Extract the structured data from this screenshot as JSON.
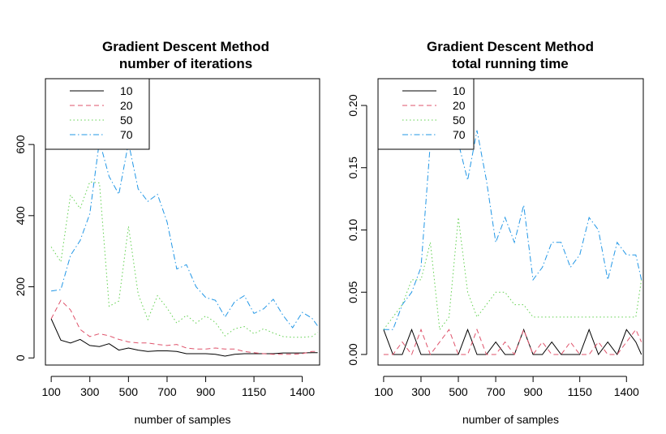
{
  "chart_data": [
    {
      "type": "line",
      "title": [
        "Gradient Descent Method",
        "number of iterations"
      ],
      "xlabel": "number of samples",
      "ylabel": "",
      "xlim": [
        70,
        1490
      ],
      "ylim": [
        -20,
        785
      ],
      "x_ticks": [
        100,
        300,
        500,
        700,
        900,
        1150,
        1400
      ],
      "y_ticks": [
        0,
        200,
        400,
        600
      ],
      "legend_position": "top-left",
      "x": [
        100,
        150,
        200,
        250,
        300,
        350,
        400,
        450,
        500,
        550,
        600,
        650,
        700,
        750,
        800,
        850,
        900,
        950,
        1000,
        1050,
        1100,
        1150,
        1200,
        1250,
        1300,
        1350,
        1400,
        1450,
        1480
      ],
      "series": [
        {
          "name": "10",
          "color": "#000000",
          "dash": "",
          "values": [
            110,
            50,
            42,
            52,
            35,
            32,
            40,
            22,
            28,
            22,
            18,
            20,
            20,
            18,
            12,
            12,
            12,
            10,
            5,
            10,
            12,
            12,
            12,
            12,
            14,
            14,
            14,
            15,
            15
          ]
        },
        {
          "name": "20",
          "color": "#DF536B",
          "dash": "6,4",
          "values": [
            110,
            162,
            135,
            80,
            60,
            68,
            62,
            52,
            45,
            42,
            42,
            38,
            35,
            38,
            28,
            25,
            25,
            28,
            25,
            25,
            18,
            15,
            12,
            10,
            10,
            10,
            12,
            18,
            18
          ]
        },
        {
          "name": "50",
          "color": "#61D04F",
          "dash": "1.5,3",
          "values": [
            312,
            270,
            458,
            420,
            495,
            492,
            145,
            160,
            370,
            180,
            108,
            175,
            140,
            98,
            120,
            98,
            118,
            100,
            62,
            82,
            88,
            68,
            82,
            70,
            60,
            58,
            58,
            60,
            72
          ]
        },
        {
          "name": "70",
          "color": "#2297E6",
          "dash": "7,3,1.5,3",
          "values": [
            188,
            192,
            288,
            330,
            405,
            610,
            510,
            460,
            605,
            475,
            440,
            460,
            382,
            250,
            262,
            200,
            170,
            162,
            115,
            158,
            175,
            125,
            138,
            165,
            120,
            85,
            128,
            112,
            90
          ]
        }
      ]
    },
    {
      "type": "line",
      "title": [
        "Gradient Descent Method",
        "total running time"
      ],
      "xlabel": "number of samples",
      "ylabel": "",
      "xlim": [
        70,
        1490
      ],
      "ylim": [
        -0.0085,
        0.2215
      ],
      "x_ticks": [
        100,
        300,
        500,
        700,
        900,
        1150,
        1400
      ],
      "y_ticks": [
        0.0,
        0.05,
        0.1,
        0.15,
        0.2
      ],
      "y_tick_labels": [
        "0.00",
        "0.05",
        "0.10",
        "0.15",
        "0.20"
      ],
      "legend_position": "top-left",
      "x": [
        100,
        150,
        200,
        250,
        300,
        350,
        400,
        450,
        500,
        550,
        600,
        650,
        700,
        750,
        800,
        850,
        900,
        950,
        1000,
        1050,
        1100,
        1150,
        1200,
        1250,
        1300,
        1350,
        1400,
        1450,
        1480
      ],
      "series": [
        {
          "name": "10",
          "color": "#000000",
          "dash": "",
          "values": [
            0.02,
            0.0,
            0.0,
            0.02,
            0.0,
            0.0,
            0.0,
            0.0,
            0.0,
            0.02,
            0.0,
            0.0,
            0.01,
            0.0,
            0.0,
            0.02,
            0.0,
            0.0,
            0.01,
            0.0,
            0.0,
            0.0,
            0.02,
            0.0,
            0.01,
            0.0,
            0.02,
            0.01,
            0.0
          ]
        },
        {
          "name": "20",
          "color": "#DF536B",
          "dash": "6,4",
          "values": [
            0.0,
            0.0,
            0.01,
            0.0,
            0.02,
            0.0,
            0.01,
            0.02,
            0.0,
            0.0,
            0.02,
            0.0,
            0.0,
            0.01,
            0.0,
            0.02,
            0.0,
            0.01,
            0.0,
            0.0,
            0.01,
            0.0,
            0.0,
            0.01,
            0.0,
            0.0,
            0.01,
            0.02,
            0.01
          ]
        },
        {
          "name": "50",
          "color": "#61D04F",
          "dash": "1.5,3",
          "values": [
            0.02,
            0.03,
            0.04,
            0.06,
            0.06,
            0.09,
            0.02,
            0.03,
            0.11,
            0.05,
            0.03,
            0.04,
            0.05,
            0.05,
            0.04,
            0.04,
            0.03,
            0.03,
            0.03,
            0.03,
            0.03,
            0.03,
            0.03,
            0.03,
            0.03,
            0.03,
            0.03,
            0.03,
            0.06
          ]
        },
        {
          "name": "70",
          "color": "#2297E6",
          "dash": "7,3,1.5,3",
          "values": [
            0.02,
            0.02,
            0.04,
            0.05,
            0.07,
            0.17,
            0.2,
            0.2,
            0.17,
            0.14,
            0.18,
            0.14,
            0.09,
            0.11,
            0.09,
            0.12,
            0.06,
            0.07,
            0.09,
            0.09,
            0.07,
            0.08,
            0.11,
            0.1,
            0.06,
            0.09,
            0.08,
            0.08,
            0.06
          ]
        }
      ]
    }
  ]
}
